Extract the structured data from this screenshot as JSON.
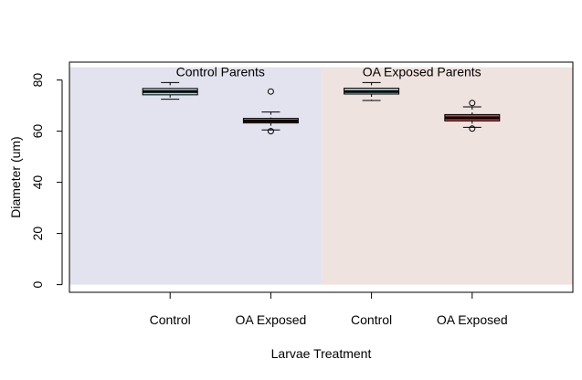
{
  "chart_data": {
    "type": "box",
    "title": "",
    "xlabel": "Larvae Treatment",
    "ylabel": "Diameter (um)",
    "ylim": [
      -3,
      87
    ],
    "yticks": [
      0,
      20,
      40,
      60,
      80
    ],
    "grid": false,
    "categories": [
      "Control",
      "OA Exposed",
      "Control",
      "OA Exposed"
    ],
    "group_labels": [
      "Control Parents",
      "OA Exposed Parents"
    ],
    "groups": [
      {
        "label_index": 0,
        "from": 0,
        "to": 1,
        "y_top": 85,
        "color": "#e3e3ef"
      },
      {
        "label_index": 1,
        "from": 2,
        "to": 3,
        "y_top": 85,
        "color": "#efe3df"
      }
    ],
    "boxes": [
      {
        "category": "Control",
        "parents": "Control Parents",
        "min": 72.5,
        "q1": 74.2,
        "median": 75.5,
        "q3": 76.7,
        "max": 79.0,
        "outliers": [],
        "fill": "#a9d4d8"
      },
      {
        "category": "OA Exposed",
        "parents": "Control Parents",
        "min": 60.5,
        "q1": 63.2,
        "median": 64.0,
        "q3": 65.0,
        "max": 67.5,
        "outliers": [
          75.5,
          60.0
        ],
        "fill": "#d6807f"
      },
      {
        "category": "Control",
        "parents": "OA Exposed Parents",
        "min": 72.0,
        "q1": 74.5,
        "median": 75.5,
        "q3": 76.8,
        "max": 79.0,
        "outliers": [],
        "fill": "#a9d4d8"
      },
      {
        "category": "OA Exposed",
        "parents": "OA Exposed Parents",
        "min": 61.5,
        "q1": 64.0,
        "median": 65.2,
        "q3": 66.5,
        "max": 69.5,
        "outliers": [
          71.0,
          61.0
        ],
        "fill": "#c6433f"
      }
    ]
  }
}
